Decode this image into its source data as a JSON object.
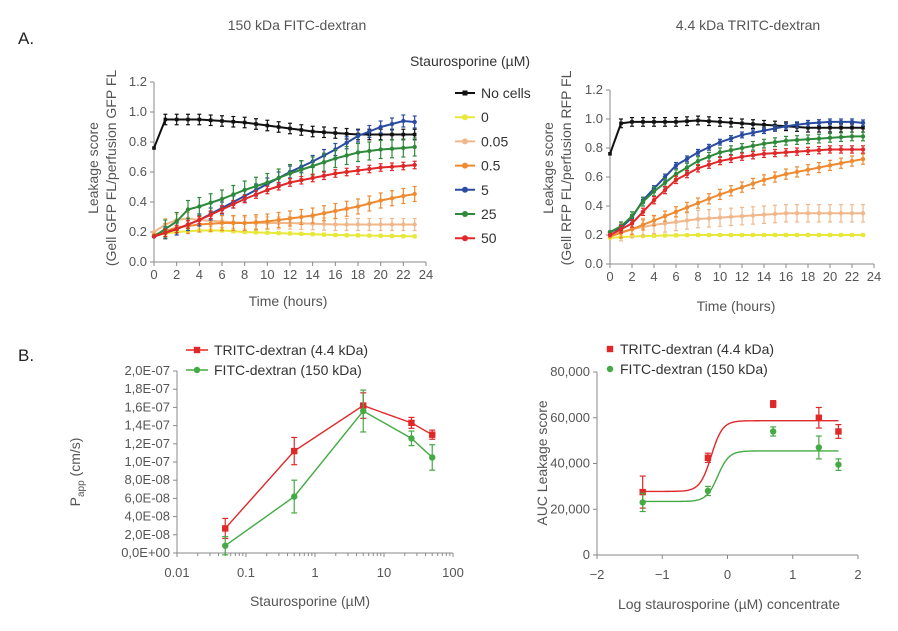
{
  "panels": {
    "a": "A.",
    "b": "B."
  },
  "legend_a_title": "Staurosporine (µM)",
  "chart_data": [
    {
      "id": "a1",
      "type": "line",
      "title": "150 kDa FITC-dextran",
      "xlabel": "Time (hours)",
      "ylabel": [
        "Leakage score",
        "(Gell GFP FL/perfusion GFP FL"
      ],
      "xlim": [
        0,
        24
      ],
      "ylim": [
        0,
        1.2
      ],
      "xticks": [
        "0",
        "2",
        "4",
        "6",
        "8",
        "10",
        "12",
        "14",
        "16",
        "18",
        "20",
        "22",
        "24"
      ],
      "yticks": [
        "0.0",
        "0.2",
        "0.4",
        "0.6",
        "0.8",
        "1.0",
        "1.2"
      ],
      "series": [
        {
          "name": "No cells",
          "color": "#111111",
          "marker": "square",
          "keys": [
            [
              0,
              0.76
            ],
            [
              1,
              0.95
            ],
            [
              2,
              0.95
            ],
            [
              3,
              0.95
            ],
            [
              4,
              0.95
            ],
            [
              6,
              0.94
            ],
            [
              8,
              0.93
            ],
            [
              10,
              0.91
            ],
            [
              12,
              0.89
            ],
            [
              14,
              0.87
            ],
            [
              16,
              0.86
            ],
            [
              18,
              0.85
            ],
            [
              20,
              0.85
            ],
            [
              22,
              0.85
            ],
            [
              23.5,
              0.85
            ]
          ],
          "err": 0.035
        },
        {
          "name": "0",
          "color": "#e8e83a",
          "marker": "circle",
          "keys": [
            [
              0,
              0.18
            ],
            [
              2,
              0.2
            ],
            [
              4,
              0.21
            ],
            [
              6,
              0.21
            ],
            [
              8,
              0.2
            ],
            [
              12,
              0.19
            ],
            [
              16,
              0.18
            ],
            [
              20,
              0.175
            ],
            [
              23.5,
              0.17
            ]
          ],
          "err": 0.01
        },
        {
          "name": "0.05",
          "color": "#f0b88a",
          "marker": "circle",
          "keys": [
            [
              0,
              0.2
            ],
            [
              1,
              0.25
            ],
            [
              2,
              0.28
            ],
            [
              3,
              0.29
            ],
            [
              4,
              0.28
            ],
            [
              6,
              0.27
            ],
            [
              8,
              0.26
            ],
            [
              12,
              0.26
            ],
            [
              16,
              0.25
            ],
            [
              20,
              0.25
            ],
            [
              23.5,
              0.25
            ]
          ],
          "err": 0.04
        },
        {
          "name": "0.5",
          "color": "#f08a30",
          "marker": "circle",
          "keys": [
            [
              0,
              0.18
            ],
            [
              2,
              0.23
            ],
            [
              4,
              0.25
            ],
            [
              6,
              0.26
            ],
            [
              8,
              0.26
            ],
            [
              10,
              0.27
            ],
            [
              12,
              0.29
            ],
            [
              14,
              0.31
            ],
            [
              16,
              0.34
            ],
            [
              18,
              0.37
            ],
            [
              20,
              0.41
            ],
            [
              22,
              0.44
            ],
            [
              23.5,
              0.46
            ]
          ],
          "err": 0.05
        },
        {
          "name": "5",
          "color": "#2a4ca0",
          "marker": "circle",
          "keys": [
            [
              0,
              0.17
            ],
            [
              2,
              0.22
            ],
            [
              4,
              0.28
            ],
            [
              6,
              0.36
            ],
            [
              8,
              0.44
            ],
            [
              10,
              0.52
            ],
            [
              12,
              0.6
            ],
            [
              14,
              0.67
            ],
            [
              16,
              0.75
            ],
            [
              18,
              0.84
            ],
            [
              20,
              0.9
            ],
            [
              22,
              0.94
            ],
            [
              23.5,
              0.93
            ]
          ],
          "err": 0.04
        },
        {
          "name": "25",
          "color": "#2e8a3a",
          "marker": "circle",
          "keys": [
            [
              0,
              0.17
            ],
            [
              1,
              0.22
            ],
            [
              2,
              0.27
            ],
            [
              3,
              0.35
            ],
            [
              4,
              0.37
            ],
            [
              6,
              0.42
            ],
            [
              8,
              0.48
            ],
            [
              10,
              0.53
            ],
            [
              12,
              0.59
            ],
            [
              14,
              0.64
            ],
            [
              16,
              0.69
            ],
            [
              18,
              0.73
            ],
            [
              20,
              0.75
            ],
            [
              22,
              0.76
            ],
            [
              23.5,
              0.77
            ]
          ],
          "err": 0.06
        },
        {
          "name": "50",
          "color": "#e02828",
          "marker": "circle",
          "keys": [
            [
              0,
              0.17
            ],
            [
              2,
              0.22
            ],
            [
              4,
              0.28
            ],
            [
              6,
              0.35
            ],
            [
              8,
              0.42
            ],
            [
              10,
              0.48
            ],
            [
              12,
              0.53
            ],
            [
              14,
              0.56
            ],
            [
              16,
              0.59
            ],
            [
              18,
              0.61
            ],
            [
              20,
              0.63
            ],
            [
              22,
              0.64
            ],
            [
              23.5,
              0.65
            ]
          ],
          "err": 0.025
        }
      ]
    },
    {
      "id": "a2",
      "type": "line",
      "title": "4.4 kDa TRITC-dextran",
      "xlabel": "Time (hours)",
      "ylabel": [
        "Leakage score",
        "(Gell RFP FL/perfusion RFP FL"
      ],
      "xlim": [
        0,
        24
      ],
      "ylim": [
        0,
        1.2
      ],
      "xticks": [
        "0",
        "2",
        "4",
        "6",
        "8",
        "10",
        "12",
        "14",
        "16",
        "18",
        "20",
        "22",
        "24"
      ],
      "yticks": [
        "0.0",
        "0.2",
        "0.4",
        "0.6",
        "0.8",
        "1.0",
        "1.2"
      ],
      "series": [
        {
          "name": "No cells",
          "color": "#111111",
          "marker": "square",
          "keys": [
            [
              0,
              0.76
            ],
            [
              1,
              0.97
            ],
            [
              2,
              0.98
            ],
            [
              4,
              0.98
            ],
            [
              6,
              0.98
            ],
            [
              8,
              0.99
            ],
            [
              10,
              0.98
            ],
            [
              12,
              0.97
            ],
            [
              14,
              0.96
            ],
            [
              16,
              0.95
            ],
            [
              18,
              0.94
            ],
            [
              20,
              0.94
            ],
            [
              22,
              0.94
            ],
            [
              23.5,
              0.94
            ]
          ],
          "err": 0.03
        },
        {
          "name": "0",
          "color": "#e8e83a",
          "marker": "circle",
          "keys": [
            [
              0,
              0.18
            ],
            [
              2,
              0.19
            ],
            [
              4,
              0.195
            ],
            [
              8,
              0.2
            ],
            [
              12,
              0.2
            ],
            [
              16,
              0.2
            ],
            [
              20,
              0.2
            ],
            [
              23.5,
              0.2
            ]
          ],
          "err": 0.01
        },
        {
          "name": "0.05",
          "color": "#f0b88a",
          "marker": "circle",
          "keys": [
            [
              0,
              0.2
            ],
            [
              2,
              0.24
            ],
            [
              4,
              0.27
            ],
            [
              6,
              0.29
            ],
            [
              8,
              0.31
            ],
            [
              10,
              0.32
            ],
            [
              12,
              0.33
            ],
            [
              14,
              0.34
            ],
            [
              16,
              0.35
            ],
            [
              18,
              0.35
            ],
            [
              20,
              0.35
            ],
            [
              22,
              0.35
            ],
            [
              23.5,
              0.35
            ]
          ],
          "err": 0.06
        },
        {
          "name": "0.5",
          "color": "#f08a30",
          "marker": "circle",
          "keys": [
            [
              0,
              0.19
            ],
            [
              2,
              0.24
            ],
            [
              4,
              0.3
            ],
            [
              6,
              0.36
            ],
            [
              8,
              0.42
            ],
            [
              10,
              0.48
            ],
            [
              12,
              0.53
            ],
            [
              14,
              0.58
            ],
            [
              16,
              0.62
            ],
            [
              18,
              0.65
            ],
            [
              20,
              0.68
            ],
            [
              22,
              0.71
            ],
            [
              23.5,
              0.73
            ]
          ],
          "err": 0.035
        },
        {
          "name": "5",
          "color": "#2a4ca0",
          "marker": "circle",
          "keys": [
            [
              0,
              0.22
            ],
            [
              1,
              0.25
            ],
            [
              2,
              0.32
            ],
            [
              3,
              0.44
            ],
            [
              4,
              0.52
            ],
            [
              6,
              0.68
            ],
            [
              8,
              0.77
            ],
            [
              10,
              0.84
            ],
            [
              12,
              0.89
            ],
            [
              14,
              0.92
            ],
            [
              16,
              0.95
            ],
            [
              18,
              0.97
            ],
            [
              20,
              0.98
            ],
            [
              22,
              0.98
            ],
            [
              23.5,
              0.97
            ]
          ],
          "err": 0.02
        },
        {
          "name": "25",
          "color": "#2e8a3a",
          "marker": "circle",
          "keys": [
            [
              0,
              0.22
            ],
            [
              1,
              0.26
            ],
            [
              2,
              0.33
            ],
            [
              3,
              0.43
            ],
            [
              4,
              0.5
            ],
            [
              6,
              0.62
            ],
            [
              8,
              0.71
            ],
            [
              10,
              0.77
            ],
            [
              12,
              0.8
            ],
            [
              14,
              0.83
            ],
            [
              16,
              0.85
            ],
            [
              18,
              0.86
            ],
            [
              20,
              0.87
            ],
            [
              22,
              0.88
            ],
            [
              23.5,
              0.88
            ]
          ],
          "err": 0.03
        },
        {
          "name": "50",
          "color": "#e02828",
          "marker": "circle",
          "keys": [
            [
              0,
              0.2
            ],
            [
              2,
              0.28
            ],
            [
              4,
              0.44
            ],
            [
              6,
              0.58
            ],
            [
              8,
              0.66
            ],
            [
              10,
              0.71
            ],
            [
              12,
              0.74
            ],
            [
              14,
              0.76
            ],
            [
              16,
              0.77
            ],
            [
              18,
              0.78
            ],
            [
              20,
              0.79
            ],
            [
              22,
              0.79
            ],
            [
              23.5,
              0.79
            ]
          ],
          "err": 0.025
        }
      ]
    },
    {
      "id": "b1",
      "type": "line",
      "xscale": "log",
      "xlabel": "Staurosporine (µM)",
      "ylabel_main": "P",
      "ylabel_sub": "app",
      "ylabel_tail": " (cm/s)",
      "xlim": [
        0.01,
        100
      ],
      "ylim": [
        0,
        2e-07
      ],
      "xticks": [
        "0.01",
        "0.1",
        "1",
        "10",
        "100"
      ],
      "yticks": [
        "0,0E+00",
        "2,0E-08",
        "4,0E-08",
        "6,0E-08",
        "8,0E-08",
        "1,0E-07",
        "1,2E-07",
        "1,4E-07",
        "1,6E-07",
        "1,8E-07",
        "2,0E-07"
      ],
      "series": [
        {
          "name": "TRITC-dextran (4.4 kDa)",
          "color": "#e02828",
          "marker": "square",
          "x": [
            0.05,
            0.5,
            5,
            25,
            50
          ],
          "y": [
            2.7e-08,
            1.12e-07,
            1.62e-07,
            1.43e-07,
            1.3e-07
          ],
          "err": [
            1.1e-08,
            1.5e-08,
            1.4e-08,
            6e-09,
            5e-09
          ]
        },
        {
          "name": "FITC-dextran (150 kDa)",
          "color": "#44aa44",
          "marker": "circle",
          "x": [
            0.05,
            0.5,
            5,
            25,
            50
          ],
          "y": [
            8e-09,
            6.2e-08,
            1.56e-07,
            1.26e-07,
            1.05e-07
          ],
          "err": [
            1e-08,
            1.8e-08,
            2.3e-08,
            8e-09,
            1.4e-08
          ]
        }
      ]
    },
    {
      "id": "b2",
      "type": "scatter",
      "xlabel": "Log staurosporine (µM) concentrate",
      "ylabel": "AUC Leakage score",
      "xlim": [
        -2,
        2
      ],
      "ylim": [
        0,
        80000
      ],
      "xticks": [
        "−2",
        "−1",
        "0",
        "1",
        "2"
      ],
      "yticks": [
        "0",
        "20,000",
        "40,000",
        "60,000",
        "80,000"
      ],
      "series": [
        {
          "name": "TRITC-dextran (4.4 kDa)",
          "color": "#e02828",
          "marker": "square",
          "x": [
            -1.3,
            -0.3,
            0.7,
            1.4,
            1.7
          ],
          "y": [
            27500,
            42500,
            66000,
            60000,
            54000
          ],
          "err": [
            7000,
            2000,
            1500,
            4500,
            3000
          ],
          "fit": {
            "bottom": 27800,
            "top": 58700,
            "logec50": -0.25,
            "hill": 5
          }
        },
        {
          "name": "FITC-dextran (150 kDa)",
          "color": "#44aa44",
          "marker": "circle",
          "x": [
            -1.3,
            -0.3,
            0.7,
            1.4,
            1.7
          ],
          "y": [
            23000,
            28000,
            54000,
            47000,
            39500
          ],
          "err": [
            4000,
            2000,
            2000,
            5000,
            2500
          ],
          "fit": {
            "bottom": 23400,
            "top": 45500,
            "logec50": -0.15,
            "hill": 5
          }
        }
      ]
    }
  ]
}
